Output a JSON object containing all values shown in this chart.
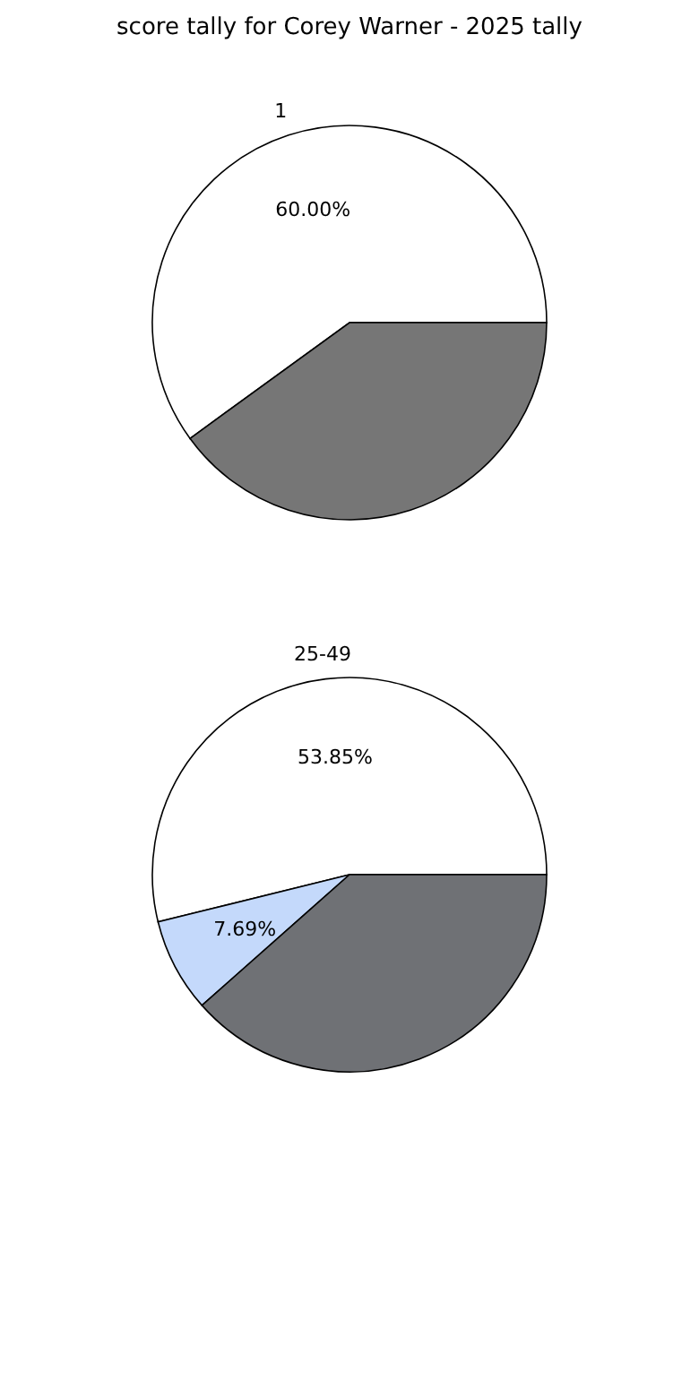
{
  "chart_data": [
    {
      "type": "pie",
      "title": "score tally for Corey Warner - 2025 tally",
      "categories": [
        "1",
        null
      ],
      "values": [
        60,
        40
      ],
      "colors": [
        "#ffffff",
        "#767676"
      ],
      "value_labels": [
        "60.00%",
        null
      ]
    },
    {
      "type": "pie",
      "categories": [
        "25-49",
        null,
        null
      ],
      "values": [
        53.85,
        7.69,
        38.46
      ],
      "colors": [
        "#ffffff",
        "#c4d9fb",
        "#6f7175"
      ],
      "value_labels": [
        "53.85%",
        "7.69%",
        null
      ]
    }
  ]
}
